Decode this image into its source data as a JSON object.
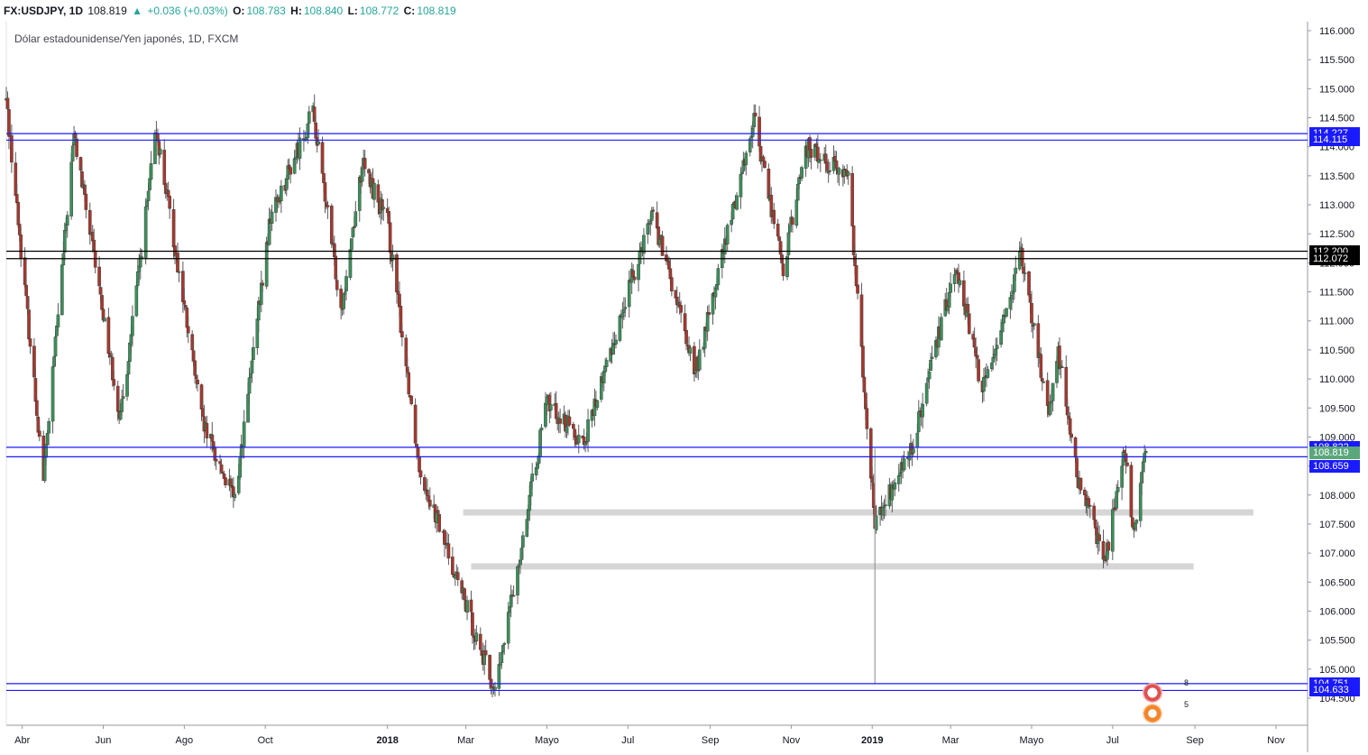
{
  "header": {
    "symbol": "FX:USDJPY, 1D",
    "last": "108.819",
    "change": "+0.036 (+0.03%)",
    "o_label": "O:",
    "o_value": "108.783",
    "h_label": "H:",
    "h_value": "108.840",
    "l_label": "L:",
    "l_value": "108.772",
    "c_label": "C:",
    "c_value": "108.819"
  },
  "subtitle": "Dólar estadounidense/Yen japonés, 1D, FXCM",
  "colors": {
    "up": "#3c8f5a",
    "down": "#a5382e",
    "wick": "#5a5a5a",
    "blue_line": "#1a1aff",
    "black_line": "#000000",
    "zone": "#d6d6d6",
    "tag_blue": "#1a1aff",
    "tag_black": "#000000",
    "tag_green": "#5aa77c"
  },
  "chart_data": {
    "type": "candlestick",
    "title": "Dólar estadounidense/Yen japonés, 1D, FXCM",
    "ylim": [
      104.0,
      116.0
    ],
    "y_ticks": [
      "116.000",
      "115.500",
      "115.000",
      "114.500",
      "114.000",
      "113.500",
      "113.000",
      "112.500",
      "112.000",
      "111.500",
      "111.000",
      "110.500",
      "110.000",
      "109.500",
      "109.000",
      "108.500",
      "108.000",
      "107.500",
      "107.000",
      "106.500",
      "106.000",
      "105.500",
      "105.000",
      "104.500"
    ],
    "x_ticks": [
      "Abr",
      "Jun",
      "Ago",
      "Oct",
      "2018",
      "Mar",
      "Mayo",
      "Jul",
      "Sep",
      "Nov",
      "2019",
      "Mar",
      "Mayo",
      "Jul",
      "Sep",
      "Nov"
    ],
    "waypoints": [
      {
        "date": "2017-03-20",
        "price": 114.8
      },
      {
        "date": "2017-04-17",
        "price": 108.3
      },
      {
        "date": "2017-05-10",
        "price": 114.2
      },
      {
        "date": "2017-06-14",
        "price": 109.3
      },
      {
        "date": "2017-07-11",
        "price": 114.3
      },
      {
        "date": "2017-08-15",
        "price": 109.2
      },
      {
        "date": "2017-09-08",
        "price": 107.9
      },
      {
        "date": "2017-10-05",
        "price": 112.8
      },
      {
        "date": "2017-11-06",
        "price": 114.6
      },
      {
        "date": "2017-11-27",
        "price": 111.2
      },
      {
        "date": "2017-12-13",
        "price": 113.7
      },
      {
        "date": "2018-01-01",
        "price": 112.7
      },
      {
        "date": "2018-01-25",
        "price": 108.5
      },
      {
        "date": "2018-02-26",
        "price": 106.3
      },
      {
        "date": "2018-03-23",
        "price": 104.6
      },
      {
        "date": "2018-05-01",
        "price": 109.6
      },
      {
        "date": "2018-05-29",
        "price": 108.9
      },
      {
        "date": "2018-07-19",
        "price": 112.9
      },
      {
        "date": "2018-08-21",
        "price": 110.1
      },
      {
        "date": "2018-10-04",
        "price": 114.5
      },
      {
        "date": "2018-10-26",
        "price": 111.9
      },
      {
        "date": "2018-11-12",
        "price": 114.0
      },
      {
        "date": "2018-12-14",
        "price": 113.5
      },
      {
        "date": "2019-01-03",
        "price": 107.5
      },
      {
        "date": "2019-01-31",
        "price": 108.8
      },
      {
        "date": "2019-03-05",
        "price": 112.0
      },
      {
        "date": "2019-03-25",
        "price": 109.8
      },
      {
        "date": "2019-04-23",
        "price": 112.1
      },
      {
        "date": "2019-05-14",
        "price": 109.4
      },
      {
        "date": "2019-05-21",
        "price": 110.5
      },
      {
        "date": "2019-06-05",
        "price": 108.2
      },
      {
        "date": "2019-06-26",
        "price": 106.9
      },
      {
        "date": "2019-07-10",
        "price": 108.8
      },
      {
        "date": "2019-07-17",
        "price": 107.3
      },
      {
        "date": "2019-07-26",
        "price": 108.82
      }
    ],
    "horizontal_lines": [
      {
        "price": 114.227,
        "color": "#1a1aff"
      },
      {
        "price": 114.115,
        "color": "#1a1aff"
      },
      {
        "price": 112.2,
        "color": "#000000"
      },
      {
        "price": 112.072,
        "color": "#000000"
      },
      {
        "price": 108.822,
        "color": "#1a1aff"
      },
      {
        "price": 108.659,
        "color": "#1a1aff"
      },
      {
        "price": 104.751,
        "color": "#1a1aff"
      },
      {
        "price": 104.633,
        "color": "#1a1aff"
      }
    ],
    "zones": [
      {
        "price": 107.7,
        "from": "2018-02-27",
        "to": "2019-10-15"
      },
      {
        "price": 106.77,
        "from": "2018-03-05",
        "to": "2019-08-31"
      }
    ],
    "price_tags": [
      {
        "label": "114.227",
        "price": 114.227,
        "bg": "#1a1aff"
      },
      {
        "label": "114.115",
        "price": 114.115,
        "bg": "#1a1aff"
      },
      {
        "label": "112.200",
        "price": 112.2,
        "bg": "#000000"
      },
      {
        "label": "112.072",
        "price": 112.072,
        "bg": "#000000"
      },
      {
        "label": "108.822",
        "price": 108.822,
        "bg": "#1a1aff"
      },
      {
        "label": "108.819",
        "price": 108.72,
        "bg": "#5aa77c"
      },
      {
        "label": "108.659",
        "price": 108.5,
        "bg": "#1a1aff"
      },
      {
        "label": "104.751",
        "price": 104.751,
        "bg": "#1a1aff"
      },
      {
        "label": "104.633",
        "price": 104.633,
        "bg": "#1a1aff"
      }
    ],
    "events": [
      {
        "icon": "us-flag-icon",
        "count": "8"
      },
      {
        "icon": "dividend-icon",
        "count": "5"
      }
    ]
  }
}
